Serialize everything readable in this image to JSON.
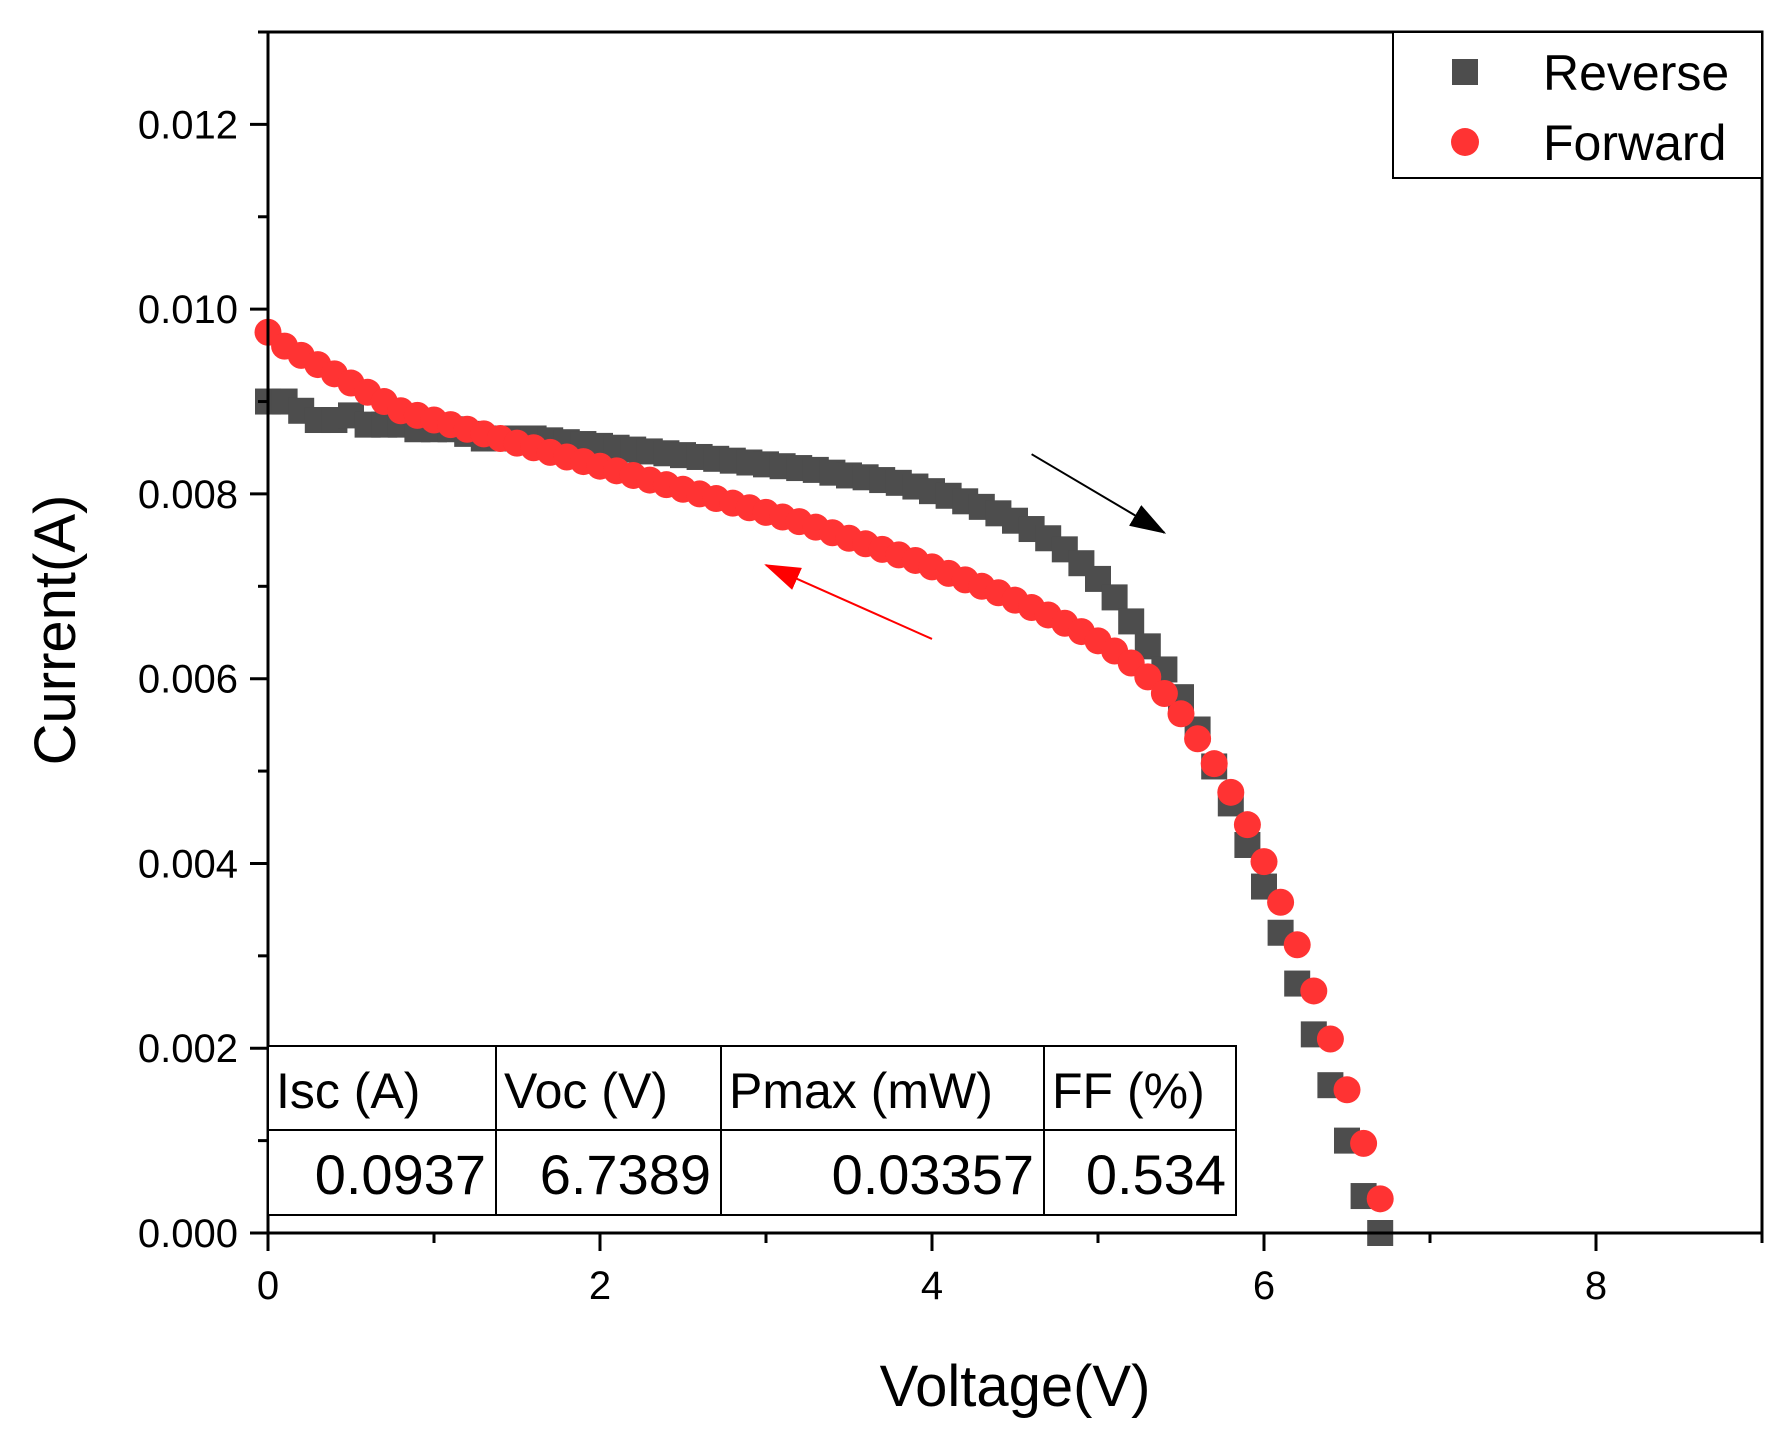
{
  "chart_data": {
    "type": "scatter",
    "title": "",
    "xlabel": "Voltage(V)",
    "ylabel": "Current(A)",
    "xlim": [
      0,
      9
    ],
    "ylim": [
      0,
      0.013
    ],
    "x_ticks": [
      0,
      2,
      4,
      6,
      8
    ],
    "x_tick_labels": [
      "0",
      "2",
      "4",
      "6",
      "8"
    ],
    "y_ticks": [
      0,
      0.002,
      0.004,
      0.006,
      0.008,
      0.01,
      0.012
    ],
    "y_tick_labels": [
      "0.000",
      "0.002",
      "0.004",
      "0.006",
      "0.008",
      "0.010",
      "0.012"
    ],
    "grid": false,
    "legend_position": "top-right",
    "series": [
      {
        "name": "Reverse",
        "marker": "square",
        "color": "#4d4d4d",
        "x": [
          0,
          0.1,
          0.2,
          0.3,
          0.4,
          0.5,
          0.6,
          0.7,
          0.8,
          0.9,
          1.0,
          1.1,
          1.2,
          1.3,
          1.4,
          1.5,
          1.6,
          1.7,
          1.8,
          1.9,
          2.0,
          2.1,
          2.2,
          2.3,
          2.4,
          2.5,
          2.6,
          2.7,
          2.8,
          2.9,
          3.0,
          3.1,
          3.2,
          3.3,
          3.4,
          3.5,
          3.6,
          3.7,
          3.8,
          3.9,
          4.0,
          4.1,
          4.2,
          4.3,
          4.4,
          4.5,
          4.6,
          4.7,
          4.8,
          4.9,
          5.0,
          5.1,
          5.2,
          5.3,
          5.4,
          5.5,
          5.6,
          5.7,
          5.8,
          5.9,
          6.0,
          6.1,
          6.2,
          6.3,
          6.4,
          6.5,
          6.6,
          6.7
        ],
        "y": [
          0.009,
          0.009,
          0.0089,
          0.0088,
          0.0088,
          0.00885,
          0.00875,
          0.00875,
          0.00875,
          0.0087,
          0.0087,
          0.0087,
          0.00865,
          0.0086,
          0.0086,
          0.0086,
          0.0086,
          0.00858,
          0.00856,
          0.00854,
          0.00852,
          0.0085,
          0.00848,
          0.00846,
          0.00844,
          0.00842,
          0.0084,
          0.00838,
          0.00836,
          0.00834,
          0.00832,
          0.0083,
          0.00828,
          0.00826,
          0.00823,
          0.0082,
          0.00818,
          0.00815,
          0.00812,
          0.00808,
          0.00803,
          0.00798,
          0.00792,
          0.00786,
          0.00779,
          0.00771,
          0.00762,
          0.00752,
          0.0074,
          0.00725,
          0.00708,
          0.00688,
          0.00662,
          0.00635,
          0.0061,
          0.0058,
          0.00545,
          0.00505,
          0.00465,
          0.0042,
          0.00375,
          0.00325,
          0.0027,
          0.00215,
          0.0016,
          0.001,
          0.0004,
          0.0
        ]
      },
      {
        "name": "Forward",
        "marker": "circle",
        "color": "#ff3333",
        "x": [
          0.0,
          0.1,
          0.2,
          0.3,
          0.4,
          0.5,
          0.6,
          0.7,
          0.8,
          0.9,
          1.0,
          1.1,
          1.2,
          1.3,
          1.4,
          1.5,
          1.6,
          1.7,
          1.8,
          1.9,
          2.0,
          2.1,
          2.2,
          2.3,
          2.4,
          2.5,
          2.6,
          2.7,
          2.8,
          2.9,
          3.0,
          3.1,
          3.2,
          3.3,
          3.4,
          3.5,
          3.6,
          3.7,
          3.8,
          3.9,
          4.0,
          4.1,
          4.2,
          4.3,
          4.4,
          4.5,
          4.6,
          4.7,
          4.8,
          4.9,
          5.0,
          5.1,
          5.2,
          5.3,
          5.4,
          5.5,
          5.6,
          5.7,
          5.8,
          5.9,
          6.0,
          6.1,
          6.2,
          6.3,
          6.4,
          6.5,
          6.6,
          6.7
        ],
        "y": [
          0.00975,
          0.0096,
          0.0095,
          0.0094,
          0.0093,
          0.0092,
          0.0091,
          0.009,
          0.0089,
          0.00885,
          0.0088,
          0.00875,
          0.0087,
          0.00865,
          0.0086,
          0.00855,
          0.0085,
          0.00845,
          0.0084,
          0.00835,
          0.0083,
          0.00825,
          0.0082,
          0.00815,
          0.0081,
          0.00805,
          0.008,
          0.00795,
          0.0079,
          0.00785,
          0.0078,
          0.00775,
          0.0077,
          0.00764,
          0.00758,
          0.00752,
          0.00746,
          0.0074,
          0.00734,
          0.00728,
          0.00721,
          0.00714,
          0.00707,
          0.007,
          0.00693,
          0.00685,
          0.00677,
          0.00669,
          0.0066,
          0.00651,
          0.00641,
          0.0063,
          0.00617,
          0.00602,
          0.00584,
          0.00562,
          0.00535,
          0.00508,
          0.00477,
          0.00442,
          0.00402,
          0.00358,
          0.00312,
          0.00262,
          0.0021,
          0.00155,
          0.00097,
          0.00037
        ]
      }
    ],
    "annotations": [
      {
        "type": "arrow",
        "color": "#000000",
        "from": [
          4.6,
          0.00843
        ],
        "to": [
          5.4,
          0.00758
        ]
      },
      {
        "type": "arrow",
        "color": "#ff0000",
        "from": [
          4.0,
          0.00643
        ],
        "to": [
          3.0,
          0.00723
        ]
      }
    ],
    "table": {
      "headers": [
        "Isc (A)",
        "Voc (V)",
        "Pmax (mW)",
        "FF (%)"
      ],
      "values": [
        "0.0937",
        "6.7389",
        "0.03357",
        "0.534"
      ]
    }
  }
}
